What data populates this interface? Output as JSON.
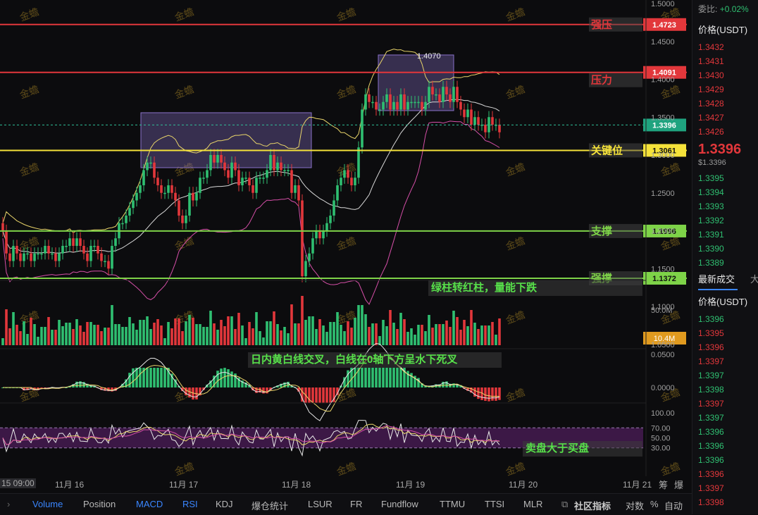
{
  "chart_data": {
    "type": "candlestick",
    "symbol_quote": "USDT",
    "price_axis_ticks": [
      "1.5000",
      "1.4500",
      "1.4000",
      "1.3500",
      "1.3000",
      "1.2500",
      "1.2000",
      "1.1500",
      "1.1000",
      "1.0500"
    ],
    "levels": [
      {
        "name": "强压",
        "value": "1.4723",
        "color": "#e2373b"
      },
      {
        "name": "压力",
        "value": "1.4091",
        "color": "#e2373b"
      },
      {
        "name": "关键位",
        "value": "1.3061",
        "color": "#f5e23a"
      },
      {
        "name": "支撑",
        "value": "1.1996",
        "color": "#7ed348"
      },
      {
        "name": "强撑",
        "value": "1.1372",
        "color": "#7ed348"
      }
    ],
    "current_price": "1.3396",
    "high_annotation": "1.4070",
    "date_labels": [
      "15 09:00",
      "11月 16",
      "11月 17",
      "11月 18",
      "11月 19",
      "11月 20",
      "11月 21"
    ],
    "closes": [
      1.2,
      1.17,
      1.16,
      1.18,
      1.17,
      1.16,
      1.17,
      1.17,
      1.16,
      1.17,
      1.17,
      1.17,
      1.18,
      1.17,
      1.17,
      1.16,
      1.17,
      1.18,
      1.18,
      1.19,
      1.18,
      1.19,
      1.18,
      1.17,
      1.16,
      1.18,
      1.18,
      1.17,
      1.16,
      1.16,
      1.15,
      1.18,
      1.19,
      1.21,
      1.21,
      1.22,
      1.23,
      1.24,
      1.25,
      1.26,
      1.28,
      1.29,
      1.29,
      1.27,
      1.26,
      1.25,
      1.25,
      1.26,
      1.25,
      1.24,
      1.22,
      1.21,
      1.22,
      1.25,
      1.24,
      1.25,
      1.27,
      1.27,
      1.28,
      1.3,
      1.29,
      1.3,
      1.29,
      1.28,
      1.27,
      1.29,
      1.28,
      1.26,
      1.27,
      1.27,
      1.26,
      1.25,
      1.27,
      1.27,
      1.27,
      1.28,
      1.3,
      1.28,
      1.29,
      1.28,
      1.28,
      1.28,
      1.25,
      1.26,
      1.24,
      1.14,
      1.16,
      1.17,
      1.19,
      1.2,
      1.19,
      1.2,
      1.21,
      1.22,
      1.24,
      1.26,
      1.27,
      1.28,
      1.27,
      1.26,
      1.27,
      1.31,
      1.36,
      1.38,
      1.37,
      1.37,
      1.36,
      1.36,
      1.37,
      1.38,
      1.36,
      1.37,
      1.36,
      1.38,
      1.36,
      1.37,
      1.37,
      1.37,
      1.37,
      1.36,
      1.37,
      1.39,
      1.38,
      1.38,
      1.37,
      1.39,
      1.38,
      1.37,
      1.39,
      1.37,
      1.36,
      1.35,
      1.36,
      1.34,
      1.35,
      1.34,
      1.34,
      1.33,
      1.35,
      1.34,
      1.34,
      1.33
    ],
    "volume_axis_label": "50.0M",
    "volume_current": "10.4M",
    "macd_axis_ticks": [
      "0.0500",
      "0.0000"
    ],
    "rsi_axis_ticks": [
      "100.00",
      "70.00",
      "50.00",
      "30.00"
    ]
  },
  "annotations": {
    "volume_note": "绿柱转红柱，量能下跌",
    "macd_note": "日内黄白线交叉，白线在0轴下方呈水下死叉",
    "rsi_note": "卖盘大于买盘"
  },
  "watermark": "金蟾",
  "order_book": {
    "ratio_label": "委比:",
    "ratio_value": "+0.02%",
    "price_header": "价格(USDT)",
    "asks": [
      "1.3432",
      "1.3431",
      "1.3430",
      "1.3429",
      "1.3428",
      "1.3427",
      "1.3426"
    ],
    "last_price": "1.3396",
    "last_price_usd": "$1.3396",
    "bids": [
      "1.3395",
      "1.3394",
      "1.3393",
      "1.3392",
      "1.3391",
      "1.3390",
      "1.3389"
    ],
    "trades_title": "最新成交",
    "trades_title_extra": "大",
    "trades_price_header": "价格(USDT)",
    "trades": [
      {
        "p": "1.3396",
        "side": "buy"
      },
      {
        "p": "1.3395",
        "side": "sell"
      },
      {
        "p": "1.3396",
        "side": "sell"
      },
      {
        "p": "1.3397",
        "side": "sell"
      },
      {
        "p": "1.3397",
        "side": "buy"
      },
      {
        "p": "1.3398",
        "side": "buy"
      },
      {
        "p": "1.3397",
        "side": "sell"
      },
      {
        "p": "1.3397",
        "side": "buy"
      },
      {
        "p": "1.3396",
        "side": "buy"
      },
      {
        "p": "1.3396",
        "side": "buy"
      },
      {
        "p": "1.3396",
        "side": "buy"
      },
      {
        "p": "1.3396",
        "side": "sell"
      },
      {
        "p": "1.3397",
        "side": "sell"
      },
      {
        "p": "1.3398",
        "side": "sell"
      }
    ]
  },
  "toolbar": {
    "tabs": [
      {
        "label": "Volume",
        "active": true
      },
      {
        "label": "Position",
        "active": false
      },
      {
        "label": "MACD",
        "active": true
      },
      {
        "label": "RSI",
        "active": true
      },
      {
        "label": "KDJ",
        "active": false
      },
      {
        "label": "爆仓统计",
        "active": false
      },
      {
        "label": "LSUR",
        "active": false
      },
      {
        "label": "FR",
        "active": false
      },
      {
        "label": "Fundflow",
        "active": false
      },
      {
        "label": "TTMU",
        "active": false
      },
      {
        "label": "TTSI",
        "active": false
      },
      {
        "label": "MLR",
        "active": false
      }
    ],
    "community_indicators": "社区指标",
    "log_label": "对数",
    "percent_label": "%",
    "auto_label": "自动",
    "right_labels": [
      "筹",
      "爆"
    ]
  },
  "colors": {
    "up": "#2fbf71",
    "down": "#e2373b",
    "accent": "#3a86ff",
    "box": "#8a72c9"
  }
}
